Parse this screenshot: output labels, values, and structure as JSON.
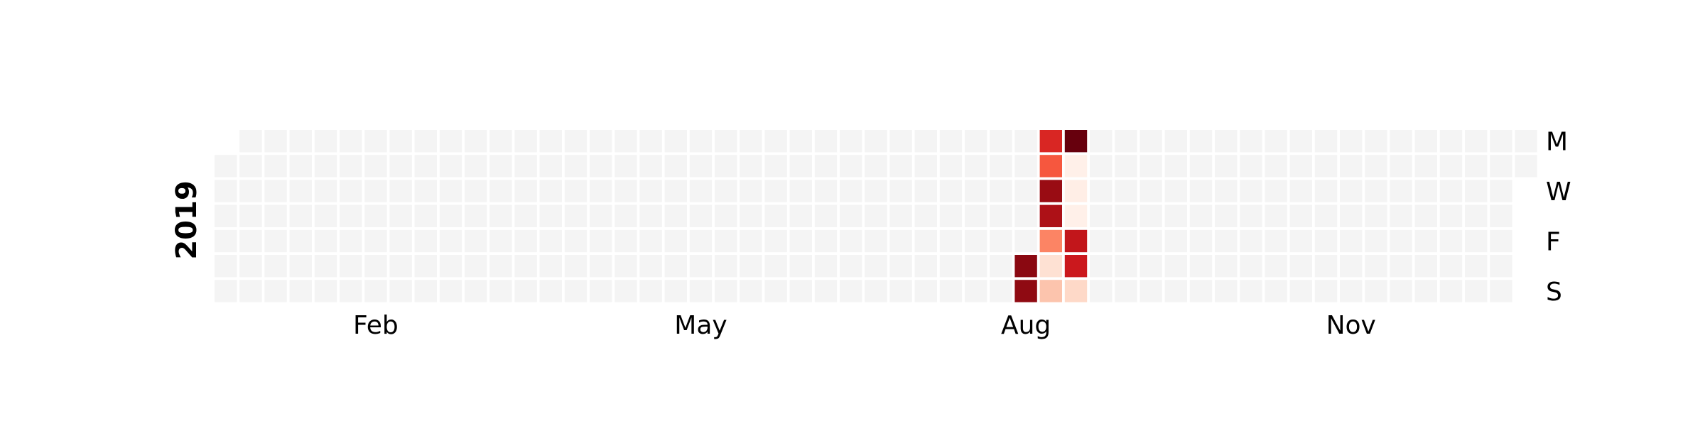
{
  "chart_data": {
    "type": "heatmap",
    "subtype": "calendar",
    "year_label": "2019",
    "year": 2019,
    "week_start": "Monday",
    "month_ticks": [
      "Feb",
      "May",
      "Aug",
      "Nov"
    ],
    "day_labels": [
      "M",
      "W",
      "F",
      "S"
    ],
    "colormap": "Reds",
    "empty_color": "#f4f4f4",
    "cells": [
      {
        "date": "2019-08-17",
        "level": 0.93
      },
      {
        "date": "2019-08-18",
        "level": 0.92
      },
      {
        "date": "2019-08-19",
        "level": 0.7
      },
      {
        "date": "2019-08-20",
        "level": 0.55
      },
      {
        "date": "2019-08-21",
        "level": 0.9
      },
      {
        "date": "2019-08-22",
        "level": 0.85
      },
      {
        "date": "2019-08-23",
        "level": 0.42
      },
      {
        "date": "2019-08-24",
        "level": 0.12
      },
      {
        "date": "2019-08-25",
        "level": 0.22
      },
      {
        "date": "2019-08-26",
        "level": 1.0
      },
      {
        "date": "2019-08-27",
        "level": 0.03
      },
      {
        "date": "2019-08-28",
        "level": 0.04
      },
      {
        "date": "2019-08-29",
        "level": 0.03
      },
      {
        "date": "2019-08-30",
        "level": 0.78
      },
      {
        "date": "2019-08-31",
        "level": 0.75
      },
      {
        "date": "2019-09-01",
        "level": 0.15
      }
    ]
  }
}
